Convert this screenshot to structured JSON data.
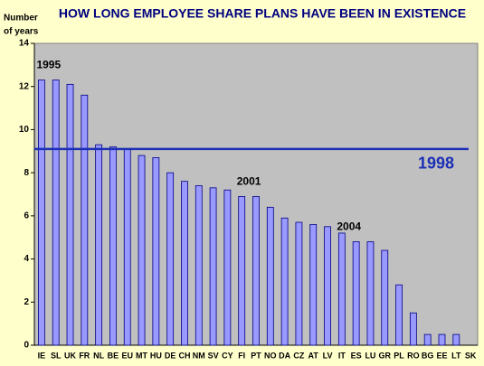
{
  "chart_data": {
    "type": "bar",
    "title": "HOW LONG EMPLOYEE SHARE PLANS HAVE BEEN IN EXISTENCE",
    "ylabel": [
      "Number",
      "of years"
    ],
    "categories": [
      "IE",
      "SL",
      "UK",
      "FR",
      "NL",
      "BE",
      "EU",
      "MT",
      "HU",
      "DE",
      "CH",
      "NM",
      "SV",
      "CY",
      "FI",
      "PT",
      "NO",
      "DA",
      "CZ",
      "AT",
      "LV",
      "IT",
      "ES",
      "LU",
      "GR",
      "PL",
      "RO",
      "BG",
      "EE",
      "LT",
      "SK"
    ],
    "values": [
      12.3,
      12.3,
      12.1,
      11.6,
      9.3,
      9.2,
      9.1,
      8.8,
      8.7,
      8.0,
      7.6,
      7.4,
      7.3,
      7.2,
      6.9,
      6.9,
      6.4,
      5.9,
      5.7,
      5.6,
      5.5,
      5.2,
      4.8,
      4.8,
      4.4,
      2.8,
      1.5,
      0.5,
      0.5,
      0.5,
      0
    ],
    "color": "#9999ff",
    "ylim": [
      0,
      14
    ],
    "yticks": [
      0,
      2,
      4,
      6,
      8,
      10,
      12,
      14
    ],
    "reference_line": {
      "value": 9.1,
      "label": "1998",
      "color": "#1c2fb5"
    },
    "annotations": [
      {
        "text": "1995",
        "category": "SL"
      },
      {
        "text": "2001",
        "category": "PT"
      },
      {
        "text": "2004",
        "category": "ES"
      }
    ]
  }
}
